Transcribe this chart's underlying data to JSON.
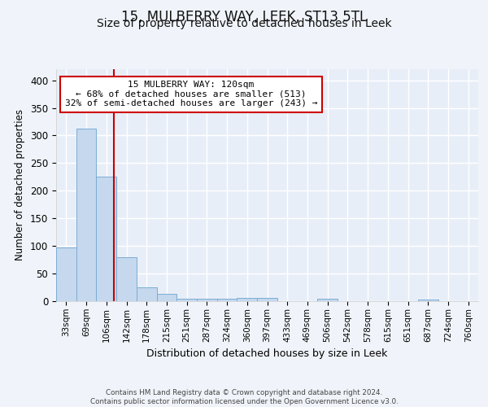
{
  "title": "15, MULBERRY WAY, LEEK, ST13 5TL",
  "subtitle": "Size of property relative to detached houses in Leek",
  "xlabel": "Distribution of detached houses by size in Leek",
  "ylabel": "Number of detached properties",
  "bin_labels": [
    "33sqm",
    "69sqm",
    "106sqm",
    "142sqm",
    "178sqm",
    "215sqm",
    "251sqm",
    "287sqm",
    "324sqm",
    "360sqm",
    "397sqm",
    "433sqm",
    "469sqm",
    "506sqm",
    "542sqm",
    "578sqm",
    "615sqm",
    "651sqm",
    "687sqm",
    "724sqm",
    "760sqm"
  ],
  "bar_values": [
    98,
    313,
    225,
    80,
    25,
    13,
    5,
    4,
    4,
    6,
    6,
    0,
    0,
    5,
    0,
    0,
    0,
    0,
    3,
    0,
    0
  ],
  "bar_color": "#c5d8ee",
  "bar_edge_color": "#7aadd4",
  "annotation_text": "15 MULBERRY WAY: 120sqm\n← 68% of detached houses are smaller (513)\n32% of semi-detached houses are larger (243) →",
  "annotation_box_color": "#ffffff",
  "annotation_box_edge": "#cc0000",
  "red_line_color": "#cc0000",
  "ylim": [
    0,
    420
  ],
  "yticks": [
    0,
    50,
    100,
    150,
    200,
    250,
    300,
    350,
    400
  ],
  "background_color": "#f0f4fa",
  "plot_bg_color": "#e8eef8",
  "grid_color": "#ffffff",
  "footnote": "Contains HM Land Registry data © Crown copyright and database right 2024.\nContains public sector information licensed under the Open Government Licence v3.0.",
  "title_fontsize": 12,
  "subtitle_fontsize": 10,
  "annot_fontsize": 8
}
